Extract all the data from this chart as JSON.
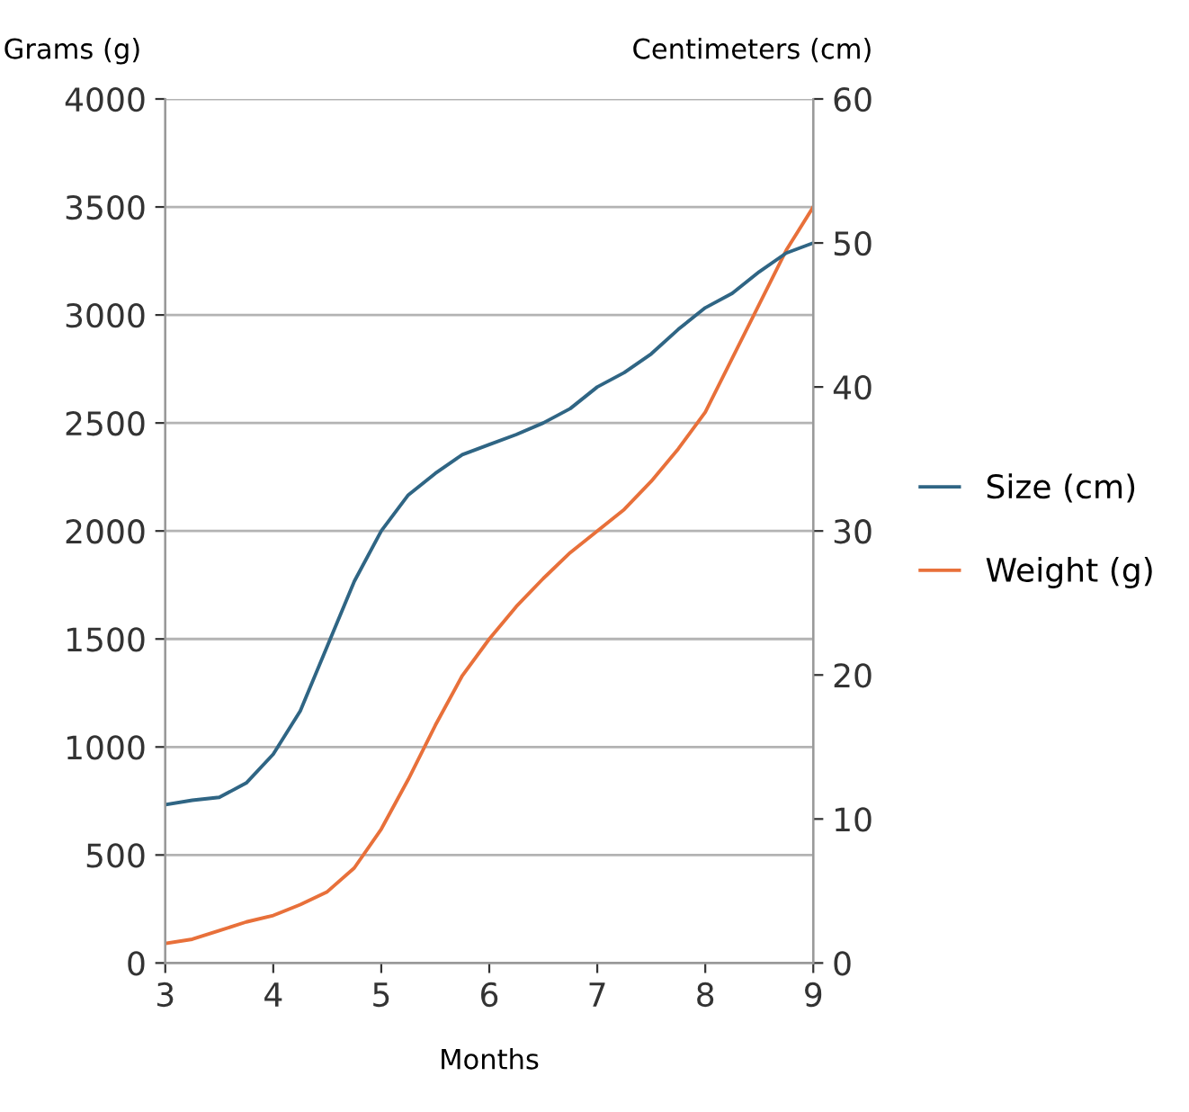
{
  "chart_data": {
    "type": "line",
    "xlabel": "Months",
    "ylabel": "Grams (g)",
    "y2label": "Centimeters (cm)",
    "x": [
      3,
      3.25,
      3.5,
      3.75,
      4,
      4.25,
      4.5,
      4.75,
      5,
      5.25,
      5.5,
      5.75,
      6,
      6.25,
      6.5,
      6.75,
      7,
      7.25,
      7.5,
      7.75,
      8,
      8.25,
      8.5,
      8.75,
      9
    ],
    "series": [
      {
        "name": "Size (cm)",
        "color": "#2f6584",
        "axis": "y2",
        "values": [
          11,
          11.3,
          11.5,
          12.5,
          14.5,
          17.5,
          22,
          26.5,
          30,
          32.5,
          34,
          35.3,
          36,
          36.7,
          37.5,
          38.5,
          40,
          41,
          42.3,
          44,
          45.5,
          46.5,
          48,
          49.3,
          50
        ]
      },
      {
        "name": "Weight (g)",
        "color": "#e8703a",
        "values": [
          90,
          110,
          150,
          190,
          220,
          270,
          330,
          440,
          620,
          850,
          1100,
          1330,
          1500,
          1650,
          1780,
          1900,
          2000,
          2100,
          2230,
          2380,
          2550,
          2800,
          3050,
          3300,
          3500
        ]
      }
    ],
    "xlim": [
      3,
      9
    ],
    "xticks": [
      3,
      4,
      5,
      6,
      7,
      8,
      9
    ],
    "ylim": [
      0,
      4000
    ],
    "yticks": [
      0,
      500,
      1000,
      1500,
      2000,
      2500,
      3000,
      3500,
      4000
    ],
    "y2lim": [
      0,
      60
    ],
    "y2ticks": [
      0,
      10,
      20,
      30,
      40,
      50,
      60
    ],
    "grid": "y",
    "legend": "right",
    "marker": "none",
    "line_style": "solid"
  }
}
